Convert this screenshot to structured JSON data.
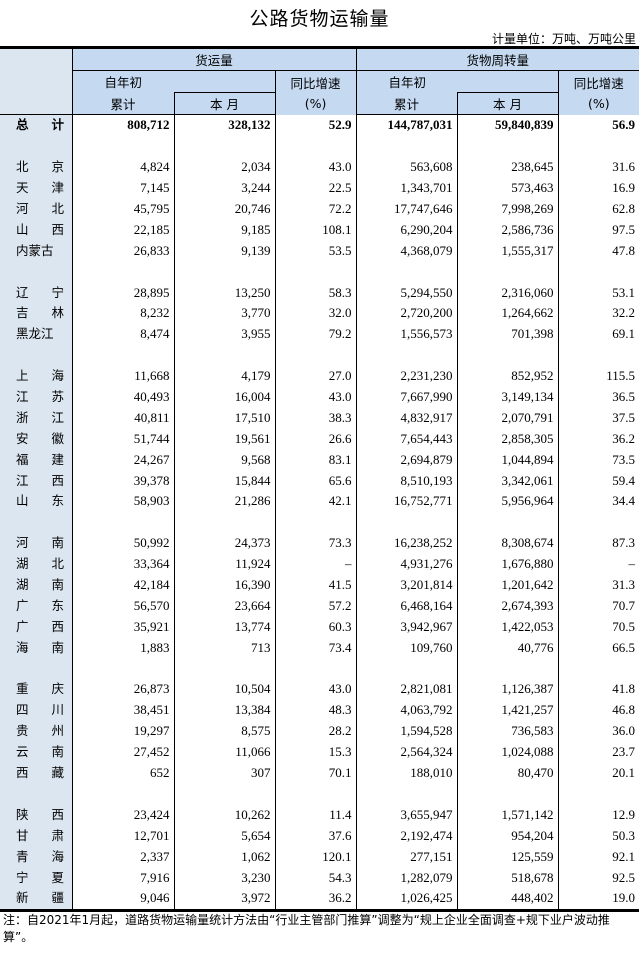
{
  "title": "公路货物运输量",
  "unit": "计量单位：万吨、万吨公里",
  "header": {
    "freight_volume": "货运量",
    "freight_turnover": "货物周转量",
    "ytd": "自年初",
    "cumulative": "累计",
    "this_month": "本 月",
    "yoy": "同比增速",
    "yoy_unit": "(%)"
  },
  "total": {
    "region": "总 计",
    "values": [
      "808,712",
      "328,132",
      "52.9",
      "144,787,031",
      "59,840,839",
      "56.9"
    ]
  },
  "groups": [
    [
      {
        "region": "北 京",
        "values": [
          "4,824",
          "2,034",
          "43.0",
          "563,608",
          "238,645",
          "31.6"
        ]
      },
      {
        "region": "天 津",
        "values": [
          "7,145",
          "3,244",
          "22.5",
          "1,343,701",
          "573,463",
          "16.9"
        ]
      },
      {
        "region": "河 北",
        "values": [
          "45,795",
          "20,746",
          "72.2",
          "17,747,646",
          "7,998,269",
          "62.8"
        ]
      },
      {
        "region": "山 西",
        "values": [
          "22,185",
          "9,185",
          "108.1",
          "6,290,204",
          "2,586,736",
          "97.5"
        ]
      },
      {
        "region": "内蒙古",
        "values": [
          "26,833",
          "9,139",
          "53.5",
          "4,368,079",
          "1,555,317",
          "47.8"
        ]
      }
    ],
    [
      {
        "region": "辽 宁",
        "values": [
          "28,895",
          "13,250",
          "58.3",
          "5,294,550",
          "2,316,060",
          "53.1"
        ]
      },
      {
        "region": "吉 林",
        "values": [
          "8,232",
          "3,770",
          "32.0",
          "2,720,200",
          "1,264,662",
          "32.2"
        ]
      },
      {
        "region": "黑龙江",
        "values": [
          "8,474",
          "3,955",
          "79.2",
          "1,556,573",
          "701,398",
          "69.1"
        ]
      }
    ],
    [
      {
        "region": "上 海",
        "values": [
          "11,668",
          "4,179",
          "27.0",
          "2,231,230",
          "852,952",
          "115.5"
        ]
      },
      {
        "region": "江 苏",
        "values": [
          "40,493",
          "16,004",
          "43.0",
          "7,667,990",
          "3,149,134",
          "36.5"
        ]
      },
      {
        "region": "浙 江",
        "values": [
          "40,811",
          "17,510",
          "38.3",
          "4,832,917",
          "2,070,791",
          "37.5"
        ]
      },
      {
        "region": "安 徽",
        "values": [
          "51,744",
          "19,561",
          "26.6",
          "7,654,443",
          "2,858,305",
          "36.2"
        ]
      },
      {
        "region": "福 建",
        "values": [
          "24,267",
          "9,568",
          "83.1",
          "2,694,879",
          "1,044,894",
          "73.5"
        ]
      },
      {
        "region": "江 西",
        "values": [
          "39,378",
          "15,844",
          "65.6",
          "8,510,193",
          "3,342,061",
          "59.4"
        ]
      },
      {
        "region": "山 东",
        "values": [
          "58,903",
          "21,286",
          "42.1",
          "16,752,771",
          "5,956,964",
          "34.4"
        ]
      }
    ],
    [
      {
        "region": "河 南",
        "values": [
          "50,992",
          "24,373",
          "73.3",
          "16,238,252",
          "8,308,674",
          "87.3"
        ]
      },
      {
        "region": "湖 北",
        "values": [
          "33,364",
          "11,924",
          "–",
          "4,931,276",
          "1,676,880",
          "–"
        ]
      },
      {
        "region": "湖 南",
        "values": [
          "42,184",
          "16,390",
          "41.5",
          "3,201,814",
          "1,201,642",
          "31.3"
        ]
      },
      {
        "region": "广 东",
        "values": [
          "56,570",
          "23,664",
          "57.2",
          "6,468,164",
          "2,674,393",
          "70.7"
        ]
      },
      {
        "region": "广 西",
        "values": [
          "35,921",
          "13,774",
          "60.3",
          "3,942,967",
          "1,422,053",
          "70.5"
        ]
      },
      {
        "region": "海 南",
        "values": [
          "1,883",
          "713",
          "73.4",
          "109,760",
          "40,776",
          "66.5"
        ]
      }
    ],
    [
      {
        "region": "重 庆",
        "values": [
          "26,873",
          "10,504",
          "43.0",
          "2,821,081",
          "1,126,387",
          "41.8"
        ]
      },
      {
        "region": "四 川",
        "values": [
          "38,451",
          "13,384",
          "48.3",
          "4,063,792",
          "1,421,257",
          "46.8"
        ]
      },
      {
        "region": "贵 州",
        "values": [
          "19,297",
          "8,575",
          "28.2",
          "1,594,528",
          "736,583",
          "36.0"
        ]
      },
      {
        "region": "云 南",
        "values": [
          "27,452",
          "11,066",
          "15.3",
          "2,564,324",
          "1,024,088",
          "23.7"
        ]
      },
      {
        "region": "西 藏",
        "values": [
          "652",
          "307",
          "70.1",
          "188,010",
          "80,470",
          "20.1"
        ]
      }
    ],
    [
      {
        "region": "陕 西",
        "values": [
          "23,424",
          "10,262",
          "11.4",
          "3,655,947",
          "1,571,142",
          "12.9"
        ]
      },
      {
        "region": "甘 肃",
        "values": [
          "12,701",
          "5,654",
          "37.6",
          "2,192,474",
          "954,204",
          "50.3"
        ]
      },
      {
        "region": "青 海",
        "values": [
          "2,337",
          "1,062",
          "120.1",
          "277,151",
          "125,559",
          "92.1"
        ]
      },
      {
        "region": "宁 夏",
        "values": [
          "7,916",
          "3,230",
          "54.3",
          "1,282,079",
          "518,678",
          "92.5"
        ]
      },
      {
        "region": "新 疆",
        "values": [
          "9,046",
          "3,972",
          "36.2",
          "1,026,425",
          "448,402",
          "19.0"
        ]
      }
    ]
  ],
  "note": "注：自2021年1月起，道路货物运输量统计方法由“行业主管部门推算”调整为“规上企业全面调查+规下业户波动推算”。",
  "colors": {
    "header_bg": "#c5d9f1",
    "label_bg": "#dce6f1"
  }
}
